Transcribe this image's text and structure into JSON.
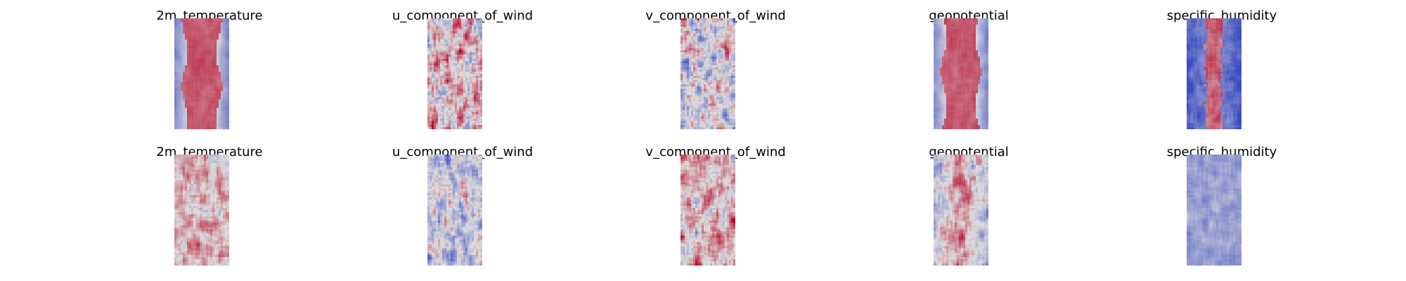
{
  "chart_data": {
    "type": "heatmap",
    "colormap": "coolwarm",
    "colors": {
      "low": "#3b4cc0",
      "mid": "#dddddd",
      "high": "#b40426"
    },
    "grid": false,
    "axes_visible": false,
    "rows": [
      {
        "panels": [
          {
            "title": "2m_temperature",
            "pattern": "warm-core"
          },
          {
            "title": "u_component_of_wind",
            "pattern": "noisy-warm-streaks"
          },
          {
            "title": "v_component_of_wind",
            "pattern": "noisy-neutral"
          },
          {
            "title": "geopotential",
            "pattern": "warm-core"
          },
          {
            "title": "specific_humidity",
            "pattern": "cold-with-warm-spine"
          }
        ]
      },
      {
        "panels": [
          {
            "title": "2m_temperature",
            "pattern": "noisy-warm"
          },
          {
            "title": "u_component_of_wind",
            "pattern": "noisy-cool"
          },
          {
            "title": "v_component_of_wind",
            "pattern": "noisy-warm-light"
          },
          {
            "title": "geopotential",
            "pattern": "warm-core-noisy"
          },
          {
            "title": "specific_humidity",
            "pattern": "cool-uniform"
          }
        ]
      }
    ]
  }
}
